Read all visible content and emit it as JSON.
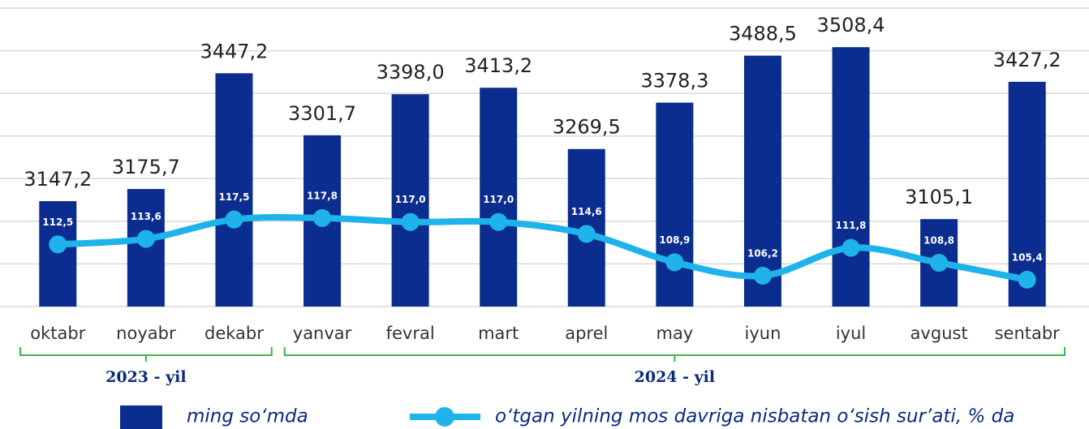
{
  "chart_data": {
    "type": "bar_line",
    "categories": [
      "oktabr",
      "noyabr",
      "dekabr",
      "yanvar",
      "fevral",
      "mart",
      "aprel",
      "may",
      "iyun",
      "iyul",
      "avgust",
      "sentabr"
    ],
    "series": [
      {
        "name": "ming so‘mda",
        "type": "bar",
        "color": "#0a2d8f",
        "values": [
          3147.2,
          3175.7,
          3447.2,
          3301.7,
          3398.0,
          3413.2,
          3269.5,
          3378.3,
          3488.5,
          3508.4,
          3105.1,
          3427.2
        ],
        "value_labels": [
          "3147,2",
          "3175,7",
          "3447,2",
          "3301,7",
          "3398,0",
          "3413,2",
          "3269,5",
          "3378,3",
          "3488,5",
          "3508,4",
          "3105,1",
          "3427,2"
        ]
      },
      {
        "name": "o‘tgan yilning mos davriga nisbatan o‘sish sur’ati, % da",
        "type": "line",
        "axis": "y2",
        "color": "#1fb3ec",
        "values": [
          112.5,
          113.6,
          117.5,
          117.8,
          117.0,
          117.0,
          114.6,
          108.9,
          106.2,
          111.8,
          108.8,
          105.4
        ],
        "value_labels": [
          "112,5",
          "113,6",
          "117,5",
          "117,8",
          "117,0",
          "117,0",
          "114,6",
          "108,9",
          "106,2",
          "111,8",
          "108,8",
          "105,4"
        ]
      }
    ],
    "ylim": [
      2900,
      3600
    ],
    "yticks": [
      2900,
      3000,
      3100,
      3200,
      3300,
      3400,
      3500,
      3600
    ],
    "y2lim": [
      100,
      160
    ],
    "grid": true,
    "groups": [
      {
        "label": "2023 - yil",
        "from": "oktabr",
        "to": "dekabr"
      },
      {
        "label": "2024 - yil",
        "from": "yanvar",
        "to": "sentabr"
      }
    ]
  }
}
